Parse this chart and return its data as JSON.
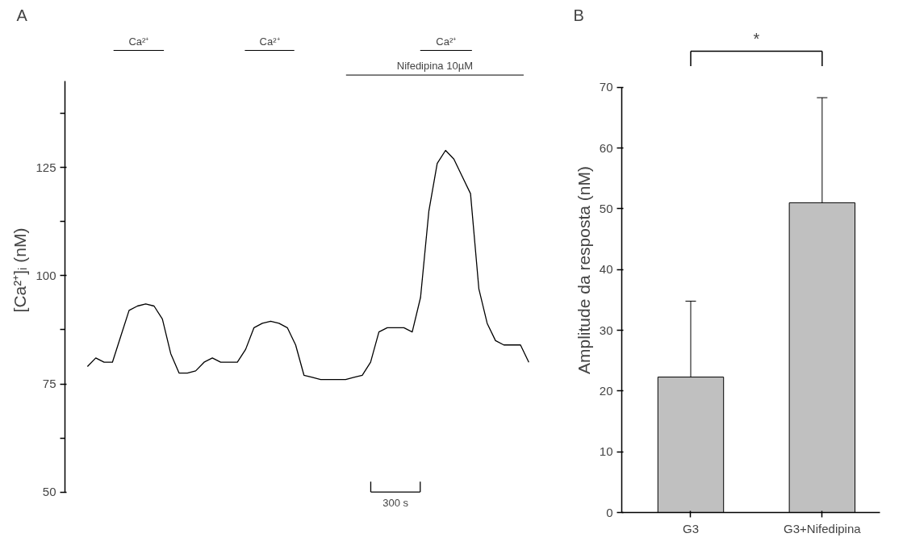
{
  "chart_data": [
    {
      "type": "line",
      "title": "A",
      "ylabel": "[Ca²⁺]ᵢ (nM)",
      "color": "#000000",
      "categories": [
        null,
        null,
        null,
        null,
        null,
        null,
        null,
        null,
        null,
        null,
        null,
        null,
        null,
        null,
        null,
        null,
        null,
        null,
        null,
        null,
        null,
        null,
        null,
        null,
        null,
        null,
        null,
        null,
        null,
        null,
        null,
        null,
        null,
        null,
        null,
        null,
        null,
        null,
        null,
        null,
        null,
        null,
        null,
        null,
        null,
        null,
        null,
        null,
        null,
        null,
        null,
        null,
        null,
        null
      ],
      "values": [
        79,
        81,
        80,
        80,
        86,
        92,
        93,
        93.5,
        93,
        90,
        82,
        77.5,
        77.5,
        78,
        80,
        81,
        80,
        80,
        80,
        83,
        88,
        89,
        89.5,
        89,
        88,
        84,
        77,
        76.5,
        76,
        76,
        76,
        76,
        76.5,
        77,
        80,
        87,
        88,
        88,
        88,
        87,
        95,
        115,
        126,
        129,
        127,
        123,
        119,
        97,
        89,
        85,
        84,
        84,
        84,
        80
      ],
      "ylim": [
        50,
        145
      ],
      "yticks": [
        50,
        75,
        100,
        125
      ],
      "tick_labels": "y",
      "grid": false,
      "annotations": [
        "Ca²⁺",
        "Ca²⁺",
        "Ca²⁺",
        "Nifedipina 10µM",
        "300 s"
      ]
    },
    {
      "type": "bar",
      "title": "B",
      "ylabel": "Amplitude da resposta (nM)",
      "categories": [
        "G3",
        "G3+Nifedipina"
      ],
      "values": [
        22.3,
        51
      ],
      "color": "#c0c0c0",
      "errors": [
        [
          22.3,
          34.8
        ],
        [
          51,
          68.3
        ]
      ],
      "ylim": [
        0,
        70
      ],
      "yticks": [
        0,
        10,
        20,
        30,
        40,
        50,
        60,
        70
      ],
      "grid": false,
      "annotations": [
        "*"
      ]
    }
  ]
}
